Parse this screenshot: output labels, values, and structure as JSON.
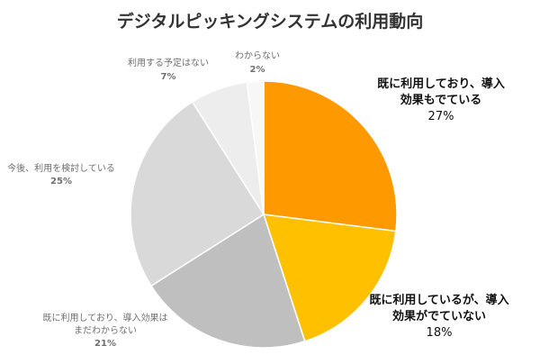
{
  "chart_data": {
    "type": "pie",
    "title": "デジタルピッキングシステムの利用動向",
    "slices": [
      {
        "label": [
          "既に利用しており、導入",
          "効果もでている"
        ],
        "value": 27,
        "pct": "27%",
        "color": "#FF9900"
      },
      {
        "label": [
          "既に利用しているが、導入",
          "効果がでていない"
        ],
        "value": 18,
        "pct": "18%",
        "color": "#FFC000"
      },
      {
        "label": [
          "既に利用しており、導入効果は",
          "まだわからない"
        ],
        "value": 21,
        "pct": "21%",
        "color": "#BFBFBF"
      },
      {
        "label": [
          "今後、利用を検討している"
        ],
        "value": 25,
        "pct": "25%",
        "color": "#D9D9D9"
      },
      {
        "label": [
          "利用する予定はない"
        ],
        "value": 7,
        "pct": "7%",
        "color": "#EDEDED"
      },
      {
        "label": [
          "わからない"
        ],
        "value": 2,
        "pct": "2%",
        "color": "#F7F7F7"
      }
    ],
    "start_angle": "12 o'clock",
    "direction": "clockwise",
    "legend": "none"
  }
}
